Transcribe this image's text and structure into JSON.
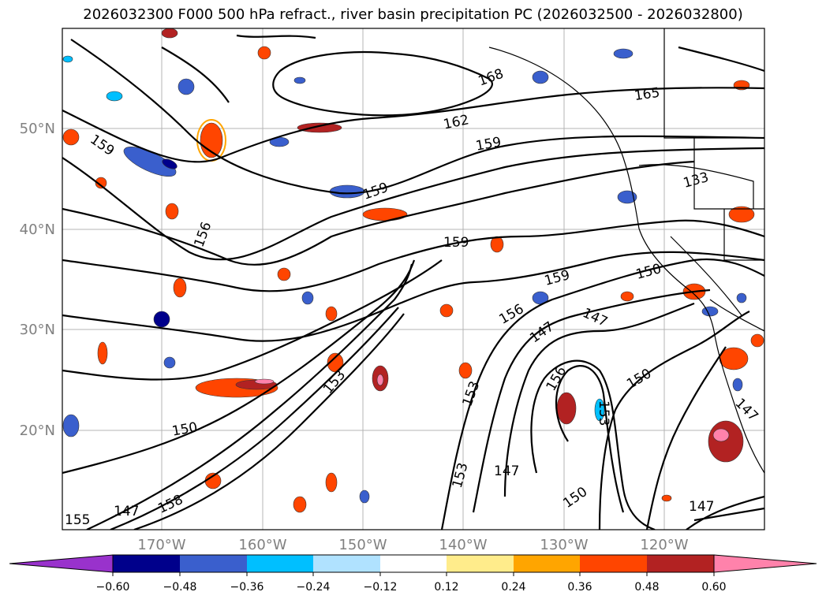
{
  "title": "2026032300 F000 500 hPa refract., river basin precipitation PC (2026032500 - 2026032800)",
  "lat_labels": [
    "50°N",
    "40°N",
    "30°N",
    "20°N"
  ],
  "lon_labels": [
    "170°W",
    "160°W",
    "150°W",
    "140°W",
    "130°W",
    "120°W"
  ],
  "contour_labels": [
    "168",
    "165",
    "162",
    "159",
    "159",
    "159",
    "133",
    "156",
    "159",
    "159",
    "150",
    "156",
    "147",
    "147",
    "150",
    "153",
    "153",
    "156",
    "153",
    "147",
    "150",
    "153",
    "147",
    "147",
    "150",
    "147",
    "158",
    "155"
  ],
  "colorbar": {
    "tick_labels": [
      "−0.60",
      "−0.48",
      "−0.36",
      "−0.24",
      "−0.12",
      "0.12",
      "0.24",
      "0.36",
      "0.48",
      "0.60"
    ],
    "colors": [
      "#9932cc",
      "#00008b",
      "#3a5fcd",
      "#00bfff",
      "#b0e2ff",
      "#ffffff",
      "#ffec8b",
      "#ffa500",
      "#ff4500",
      "#b22222",
      "#ff82ab",
      "#ff82ab"
    ]
  }
}
